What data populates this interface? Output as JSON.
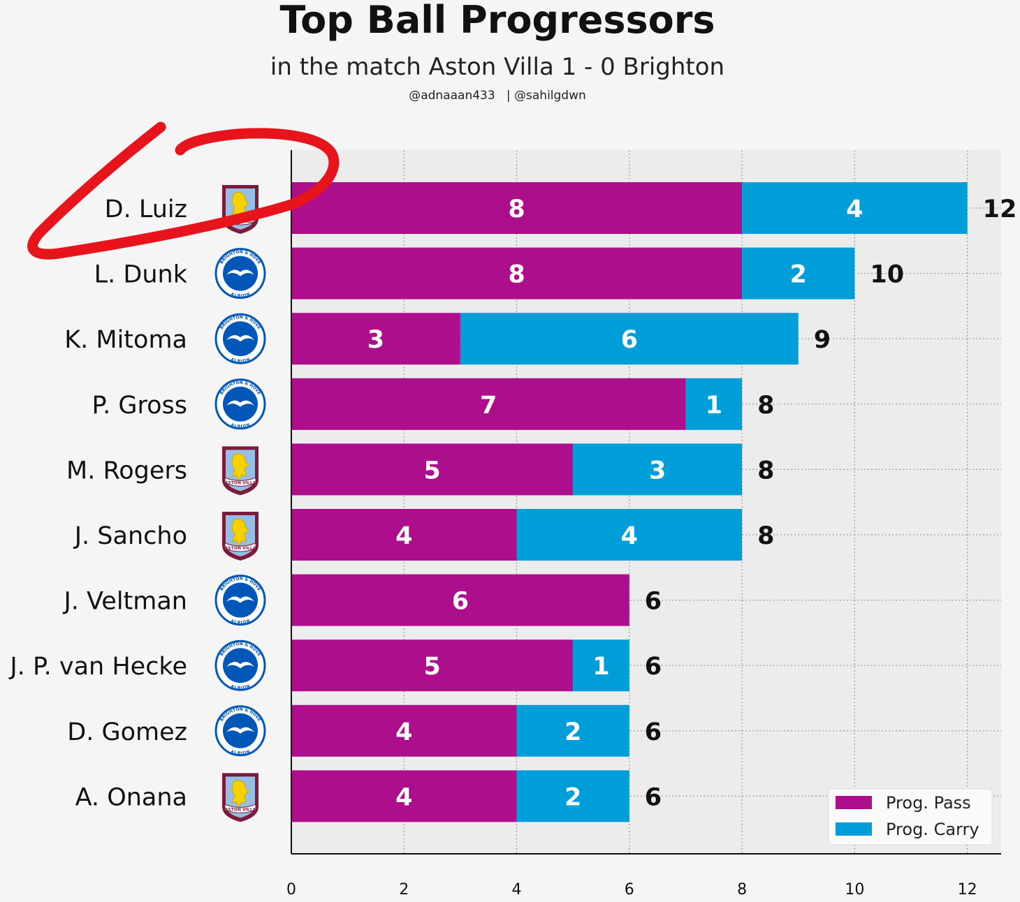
{
  "title": "Top Ball Progressors",
  "subtitle": "in the match Aston Villa 1 - 0 Brighton",
  "credits": "@adnaaan433   | @sahilgdwn",
  "colors": {
    "pass": "#ad0f8c",
    "carry": "#009ed8",
    "plot_bg": "#ececec",
    "page_bg": "#f5f5f5",
    "annotation": "#e8141c",
    "villa_claret": "#7b1c3d",
    "villa_blue": "#95bfe5",
    "villa_yellow": "#f5d100",
    "brighton_blue": "#0057b8"
  },
  "chart_data": {
    "type": "bar",
    "orientation": "horizontal",
    "stacked": true,
    "categories": [
      "D. Luiz",
      "L. Dunk",
      "K. Mitoma",
      "P. Gross",
      "M. Rogers",
      "J. Sancho",
      "J. Veltman",
      "J. P. van Hecke",
      "D. Gomez",
      "A. Onana"
    ],
    "teams": [
      "aston-villa",
      "brighton",
      "brighton",
      "brighton",
      "aston-villa",
      "aston-villa",
      "brighton",
      "brighton",
      "brighton",
      "aston-villa"
    ],
    "series": [
      {
        "name": "Prog. Pass",
        "values": [
          8,
          8,
          3,
          7,
          5,
          4,
          6,
          5,
          4,
          4
        ]
      },
      {
        "name": "Prog. Carry",
        "values": [
          4,
          2,
          6,
          1,
          3,
          4,
          0,
          1,
          2,
          2
        ]
      }
    ],
    "totals": [
      12,
      10,
      9,
      8,
      8,
      8,
      6,
      6,
      6,
      6
    ],
    "xlim": [
      0,
      12.6
    ],
    "xticks": [
      0,
      2,
      4,
      6,
      8,
      10,
      12
    ],
    "grid": true,
    "legend_position": "bottom-right"
  },
  "crests": {
    "aston-villa": "ASTON VILLA",
    "brighton-top": "BRIGHTON & HOVE",
    "brighton-bottom": "ALBION"
  }
}
